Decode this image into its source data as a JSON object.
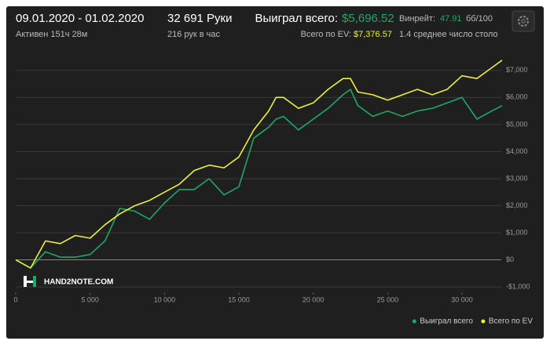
{
  "header": {
    "date_range": "09.01.2020 - 01.02.2020",
    "active": "Активен 151ч 28м",
    "hands": "32 691 Руки",
    "hands_per_hour": "216 рук в час",
    "won_label": "Выиграл всего:",
    "won_value": "$5,696.52",
    "ev_label": "Всего по EV:",
    "ev_value": "$7,376.57",
    "winrate_label": "Винрейт:",
    "winrate_value": "47.91",
    "winrate_unit": "бб/100",
    "avg_tables": "1.4 среднее число столо"
  },
  "chart_data": {
    "type": "line",
    "watermark": "HAND2NOTE.COM",
    "x": [
      0,
      1000,
      2000,
      3000,
      4000,
      5000,
      6000,
      7000,
      8000,
      9000,
      10000,
      11000,
      12000,
      13000,
      14000,
      15000,
      16000,
      17000,
      17500,
      18000,
      19000,
      20000,
      21000,
      22000,
      22500,
      23000,
      24000,
      25000,
      26000,
      27000,
      28000,
      29000,
      30000,
      31000,
      32000,
      32691
    ],
    "series": [
      {
        "name": "Выиграл всего",
        "color": "#1fa866",
        "values": [
          0,
          -300,
          300,
          100,
          100,
          200,
          700,
          1900,
          1800,
          1500,
          2100,
          2600,
          2600,
          3000,
          2400,
          2700,
          4500,
          4900,
          5200,
          5300,
          4800,
          5200,
          5600,
          6100,
          6300,
          5700,
          5300,
          5500,
          5300,
          5500,
          5600,
          5800,
          6000,
          5200,
          5500,
          5697
        ]
      },
      {
        "name": "Всего по EV",
        "color": "#eeee3c",
        "values": [
          0,
          -300,
          700,
          600,
          900,
          800,
          1300,
          1700,
          2000,
          2200,
          2500,
          2800,
          3300,
          3500,
          3400,
          3800,
          4800,
          5500,
          6000,
          6000,
          5600,
          5800,
          6300,
          6700,
          6700,
          6200,
          6100,
          5900,
          6100,
          6300,
          6100,
          6300,
          6800,
          6700,
          7100,
          7377
        ]
      }
    ],
    "xlim": [
      0,
      32691
    ],
    "xticks": [
      0,
      {
        "value": 5000,
        "label": "5 000"
      },
      {
        "value": 10000,
        "label": "10 000"
      },
      {
        "value": 15000,
        "label": "15 000"
      },
      {
        "value": 20000,
        "label": "20 000"
      },
      {
        "value": 25000,
        "label": "25 000"
      },
      {
        "value": 30000,
        "label": "30 000"
      }
    ],
    "ylim": [
      -1200,
      7400
    ],
    "yticks": [
      {
        "value": -1000,
        "label": "-$1,000"
      },
      {
        "value": 0,
        "label": "$0"
      },
      {
        "value": 1000,
        "label": "$1,000"
      },
      {
        "value": 2000,
        "label": "$2,000"
      },
      {
        "value": 3000,
        "label": "$3,000"
      },
      {
        "value": 4000,
        "label": "$4,000"
      },
      {
        "value": 5000,
        "label": "$5,000"
      },
      {
        "value": 6000,
        "label": "$6,000"
      },
      {
        "value": 7000,
        "label": "$7,000"
      }
    ],
    "grid": true,
    "legend": "bottom-right"
  }
}
